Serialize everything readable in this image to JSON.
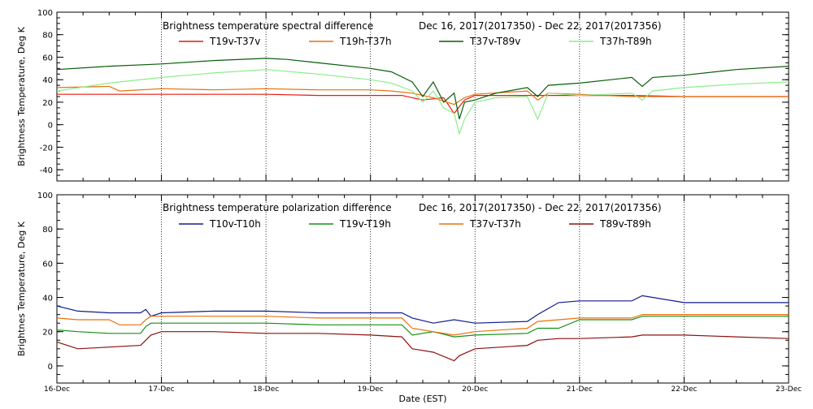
{
  "chart_data": [
    {
      "type": "line",
      "title": "Brightness temperature spectral difference",
      "date_range": "Dec 16, 2017(2017350) - Dec 22, 2017(2017356)",
      "ylabel": "Brightness Temperature, Deg K",
      "xlabel": "",
      "xlim": [
        0,
        7
      ],
      "ylim": [
        -50,
        100
      ],
      "yticks": [
        -40,
        -20,
        0,
        20,
        40,
        60,
        80,
        100
      ],
      "grid": true,
      "legend": "top",
      "series": [
        {
          "name": "T19v-T37v",
          "color": "#e81a0c",
          "x": [
            0,
            0.5,
            1,
            1.5,
            2,
            2.5,
            3,
            3.3,
            3.5,
            3.7,
            3.8,
            3.9,
            4,
            4.5,
            5,
            5.5,
            6,
            6.5,
            7
          ],
          "y": [
            27,
            27,
            27,
            27,
            27,
            26,
            26,
            26,
            22,
            24,
            10,
            22,
            26,
            26,
            26,
            26,
            25,
            25,
            25
          ]
        },
        {
          "name": "T19h-T37h",
          "color": "#e8720c",
          "x": [
            0,
            0.5,
            0.6,
            1,
            1.5,
            2,
            2.5,
            3,
            3.2,
            3.4,
            3.6,
            3.8,
            3.9,
            4,
            4.5,
            4.6,
            4.7,
            5,
            5.5,
            6,
            6.5,
            7
          ],
          "y": [
            33,
            34,
            30,
            32,
            31,
            32,
            31,
            31,
            30,
            28,
            24,
            18,
            24,
            27,
            30,
            22,
            28,
            27,
            25,
            25,
            25,
            25
          ]
        },
        {
          "name": "T37v-T89v",
          "color": "#0a5c0a",
          "x": [
            0,
            0.5,
            1,
            1.5,
            2,
            2.2,
            2.5,
            3,
            3.2,
            3.4,
            3.5,
            3.6,
            3.7,
            3.8,
            3.85,
            3.9,
            4,
            4.2,
            4.5,
            4.6,
            4.7,
            5,
            5.5,
            5.6,
            5.7,
            6,
            6.5,
            7
          ],
          "y": [
            49,
            52,
            54,
            57,
            59,
            58,
            55,
            50,
            47,
            38,
            25,
            38,
            20,
            28,
            5,
            20,
            22,
            28,
            33,
            25,
            35,
            37,
            42,
            34,
            42,
            44,
            49,
            52
          ]
        },
        {
          "name": "T37h-T89h",
          "color": "#8aee8a",
          "x": [
            0,
            0.5,
            1,
            1.5,
            2,
            2.5,
            3,
            3.2,
            3.4,
            3.5,
            3.6,
            3.7,
            3.8,
            3.85,
            3.9,
            4,
            4.2,
            4.5,
            4.6,
            4.7,
            5,
            5.5,
            5.6,
            5.7,
            6,
            6.5,
            7
          ],
          "y": [
            30,
            37,
            42,
            46,
            49,
            45,
            40,
            37,
            30,
            20,
            30,
            15,
            10,
            -8,
            5,
            20,
            24,
            25,
            5,
            28,
            26,
            28,
            22,
            30,
            33,
            36,
            38
          ]
        }
      ]
    },
    {
      "type": "line",
      "title": "Brightness temperature polarization difference",
      "date_range": "Dec 16, 2017(2017350) - Dec 22, 2017(2017356)",
      "ylabel": "Brightnes Temperature, Deg K",
      "xlabel": "Date (EST)",
      "xlim": [
        0,
        7
      ],
      "ylim": [
        -10,
        100
      ],
      "yticks": [
        0,
        20,
        40,
        60,
        80,
        100
      ],
      "xticks": [
        "16-Dec",
        "17-Dec",
        "18-Dec",
        "19-Dec",
        "20-Dec",
        "21-Dec",
        "22-Dec",
        "23-Dec"
      ],
      "grid": true,
      "legend": "top",
      "series": [
        {
          "name": "T10v-T10h",
          "color": "#101b8c",
          "x": [
            0,
            0.2,
            0.5,
            0.8,
            0.85,
            0.9,
            1,
            1.5,
            2,
            2.5,
            3,
            3.3,
            3.4,
            3.6,
            3.8,
            4,
            4.5,
            4.6,
            4.8,
            5,
            5.5,
            5.6,
            6,
            6.5,
            7
          ],
          "y": [
            35,
            32,
            31,
            31,
            33,
            29,
            31,
            32,
            32,
            31,
            31,
            31,
            28,
            25,
            27,
            25,
            26,
            30,
            37,
            38,
            38,
            41,
            37,
            37,
            37
          ]
        },
        {
          "name": "T19v-T19h",
          "color": "#169016",
          "x": [
            0,
            0.2,
            0.5,
            0.8,
            0.85,
            0.9,
            1,
            1.5,
            2,
            2.5,
            3,
            3.3,
            3.4,
            3.6,
            3.8,
            4,
            4.5,
            4.6,
            4.8,
            5,
            5.5,
            5.6,
            6,
            6.5,
            7
          ],
          "y": [
            21,
            20,
            19,
            19,
            23,
            25,
            25,
            25,
            25,
            24,
            24,
            24,
            18,
            20,
            17,
            18,
            19,
            22,
            22,
            27,
            27,
            29,
            29,
            29,
            29
          ]
        },
        {
          "name": "T37v-T37h",
          "color": "#e8720c",
          "x": [
            0,
            0.2,
            0.5,
            0.6,
            0.8,
            0.85,
            0.9,
            1,
            1.5,
            2,
            2.5,
            3,
            3.3,
            3.4,
            3.6,
            3.8,
            4,
            4.5,
            4.6,
            4.8,
            5,
            5.5,
            5.6,
            6,
            6.5,
            7
          ],
          "y": [
            28,
            27,
            27,
            24,
            24,
            27,
            29,
            29,
            29,
            29,
            28,
            28,
            28,
            22,
            20,
            18,
            20,
            22,
            26,
            27,
            28,
            28,
            30,
            30,
            30,
            30
          ]
        },
        {
          "name": "T89v-T89h",
          "color": "#8c1010",
          "x": [
            0,
            0.2,
            0.5,
            0.8,
            0.85,
            0.9,
            1,
            1.5,
            2,
            2.5,
            3,
            3.3,
            3.4,
            3.6,
            3.8,
            3.85,
            4,
            4.5,
            4.6,
            4.8,
            5,
            5.5,
            5.6,
            6,
            6.5,
            7
          ],
          "y": [
            14,
            10,
            11,
            12,
            15,
            18,
            20,
            20,
            19,
            19,
            18,
            17,
            10,
            8,
            3,
            6,
            10,
            12,
            15,
            16,
            16,
            17,
            18,
            18,
            17,
            16
          ]
        }
      ]
    }
  ]
}
